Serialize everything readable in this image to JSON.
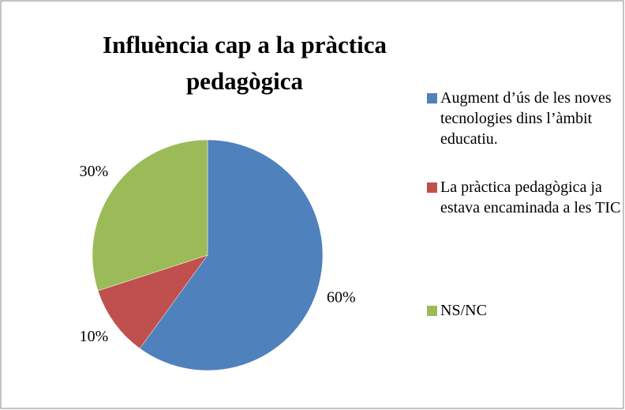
{
  "chart_data": {
    "type": "pie",
    "title": "Influència cap a la pràctica pedagògica",
    "categories": [
      "Augment d’ús de les noves tecnologies dins l’àmbit educatiu.",
      "La pràctica pedagògica ja estava encaminada a les TIC",
      "NS/NC"
    ],
    "values": [
      60,
      10,
      30
    ],
    "value_labels": [
      "60%",
      "10%",
      "30%"
    ],
    "colors": [
      "#4f81bd",
      "#c0504d",
      "#9bbb59"
    ],
    "legend": "right"
  }
}
